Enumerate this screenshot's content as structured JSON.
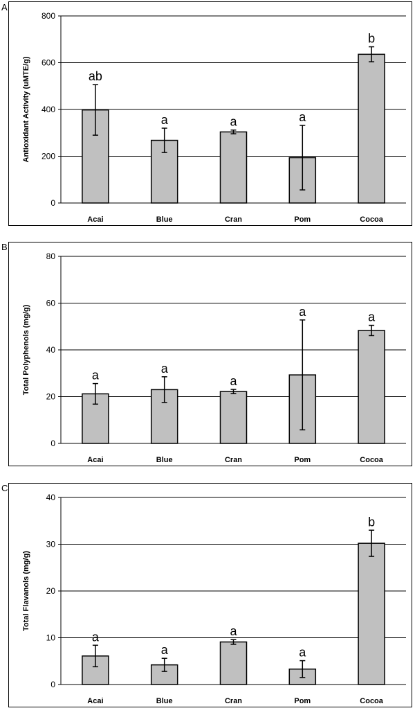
{
  "panels": [
    {
      "letter": "A"
    },
    {
      "letter": "B"
    },
    {
      "letter": "C"
    }
  ],
  "chart_data": [
    {
      "type": "bar",
      "panel": "A",
      "categories": [
        "Acai",
        "Blue",
        "Cran",
        "Pom",
        "Cocoa"
      ],
      "values": [
        398,
        268,
        304,
        194,
        636
      ],
      "errors": [
        108,
        52,
        8,
        138,
        32
      ],
      "significance": [
        "ab",
        "a",
        "a",
        "a",
        "b"
      ],
      "ylabel": "Antioxidant Activity (uMTE/g)",
      "ylim": [
        0,
        800
      ],
      "yticks": [
        0,
        200,
        400,
        600,
        800
      ],
      "ytick_labels": [
        "0",
        "200",
        "400",
        "600",
        "800"
      ],
      "grid": true,
      "bar_color": "#c0c0c0"
    },
    {
      "type": "bar",
      "panel": "B",
      "categories": [
        "Acai",
        "Blue",
        "Cran",
        "Pom",
        "Cocoa"
      ],
      "values": [
        21.2,
        23.0,
        22.2,
        29.3,
        48.3
      ],
      "errors": [
        4.4,
        5.5,
        0.9,
        23.5,
        2.2
      ],
      "significance": [
        "a",
        "a",
        "a",
        "a",
        "a"
      ],
      "ylabel": "Total Polyphenols (mg/g)",
      "ylim": [
        0,
        80
      ],
      "yticks": [
        0,
        20,
        40,
        60,
        80
      ],
      "ytick_labels": [
        "0",
        "20",
        "40",
        "60",
        "80"
      ],
      "grid": true,
      "bar_color": "#c0c0c0"
    },
    {
      "type": "bar",
      "panel": "C",
      "categories": [
        "Acai",
        "Blue",
        "Cran",
        "Pom",
        "Cocoa"
      ],
      "values": [
        6.1,
        4.2,
        9.1,
        3.3,
        30.2
      ],
      "errors": [
        2.3,
        1.4,
        0.5,
        1.8,
        2.8
      ],
      "significance": [
        "a",
        "a",
        "a",
        "a",
        "b"
      ],
      "ylabel": "Total Flavanols (mg/g)",
      "ylim": [
        0,
        40
      ],
      "yticks": [
        0,
        10,
        20,
        30,
        40
      ],
      "ytick_labels": [
        "0",
        "10",
        "20",
        "30",
        "40"
      ],
      "grid": true,
      "bar_color": "#c0c0c0"
    }
  ]
}
